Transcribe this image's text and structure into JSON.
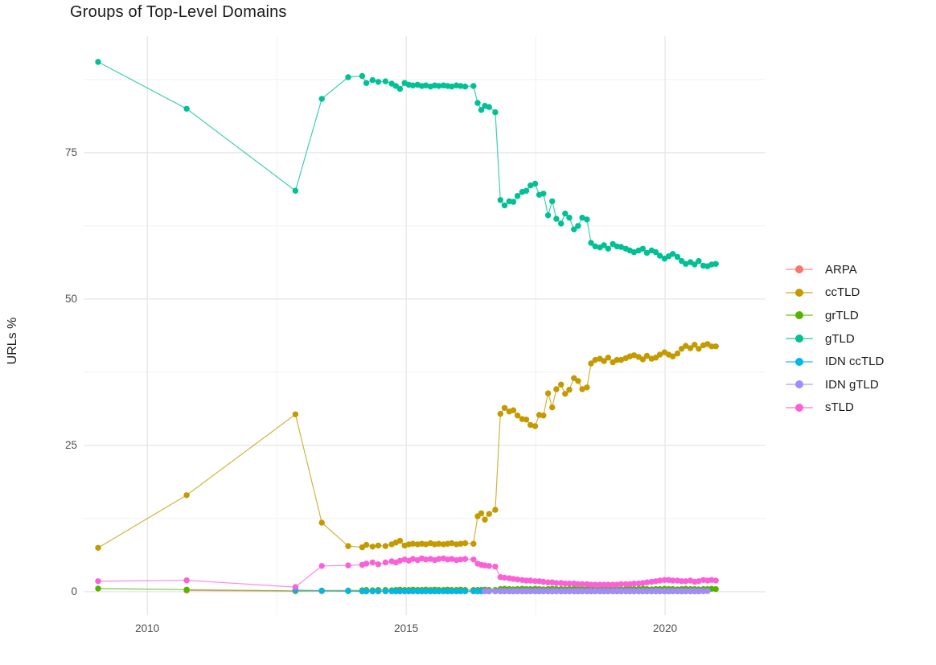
{
  "chart_data": {
    "type": "line",
    "title": "Groups of Top-Level Domains",
    "xlabel": "",
    "ylabel": "URLs %",
    "xlim": [
      2008.77,
      2021.94
    ],
    "ylim": [
      -4.0,
      94.9
    ],
    "xticks": [
      "2010",
      "2015",
      "2020"
    ],
    "yticks": [
      "0",
      "25",
      "50",
      "75"
    ],
    "x_minor": [
      2012.5,
      2017.5
    ],
    "y_minor": [
      12.5,
      37.5,
      62.5,
      87.5
    ],
    "grid": "major+minor on white, no axis lines",
    "legend_position": "right",
    "x": [
      2009.05,
      2010.76,
      2012.86,
      2013.37,
      2013.88,
      2014.15,
      2014.23,
      2014.35,
      2014.46,
      2014.6,
      2014.72,
      2014.8,
      2014.88,
      2014.97,
      2015.05,
      2015.13,
      2015.22,
      2015.3,
      2015.38,
      2015.47,
      2015.55,
      2015.63,
      2015.72,
      2015.8,
      2015.88,
      2015.97,
      2016.05,
      2016.14,
      2016.3,
      2016.38,
      2016.45,
      2016.52,
      2016.6,
      2016.72,
      2016.82,
      2016.9,
      2016.99,
      2017.07,
      2017.15,
      2017.24,
      2017.32,
      2017.4,
      2017.49,
      2017.57,
      2017.65,
      2017.74,
      2017.82,
      2017.9,
      2017.99,
      2018.07,
      2018.15,
      2018.24,
      2018.32,
      2018.4,
      2018.49,
      2018.57,
      2018.65,
      2018.74,
      2018.82,
      2018.9,
      2018.99,
      2019.07,
      2019.15,
      2019.24,
      2019.32,
      2019.4,
      2019.49,
      2019.57,
      2019.65,
      2019.74,
      2019.82,
      2019.9,
      2019.99,
      2020.07,
      2020.15,
      2020.24,
      2020.32,
      2020.4,
      2020.49,
      2020.57,
      2020.65,
      2020.74,
      2020.82,
      2020.9,
      2020.98
    ],
    "series": [
      {
        "name": "ARPA",
        "color": "#F8766D",
        "offset": 1,
        "y": [
          0.2,
          0.1,
          0.1,
          0.08,
          0.07,
          0.07,
          0.07,
          0.07,
          0.07,
          0.07,
          0.07,
          0.07,
          0.07,
          0.07,
          0.07,
          0.07,
          0.07,
          0.07,
          0.07,
          0.07,
          0.07,
          0.07,
          0.07,
          0.07,
          0.07,
          0.07,
          0.07,
          0.07,
          0.07,
          0.06,
          0.06,
          0.06,
          0.06,
          0.06,
          0.06,
          0.06,
          0.06,
          0.06,
          0.06,
          0.06,
          0.06,
          0.06,
          0.06,
          0.06,
          0.06,
          0.06,
          0.06,
          0.06,
          0.06,
          0.06,
          0.06,
          0.06,
          0.06,
          0.06,
          0.06,
          0.06,
          0.06,
          0.06,
          0.06,
          0.06,
          0.06,
          0.06,
          0.06,
          0.06,
          0.06,
          0.06,
          0.06,
          0.06,
          0.06,
          0.06,
          0.06,
          0.06,
          0.06,
          0.06,
          0.06,
          0.06,
          0.06,
          0.06,
          0.06,
          0.06
        ]
      },
      {
        "name": "ccTLD",
        "color": "#C49A00",
        "offset": 0,
        "y": [
          7.5,
          16.5,
          30.3,
          11.8,
          7.8,
          7.6,
          8.0,
          7.7,
          7.9,
          7.8,
          8.1,
          8.4,
          8.7,
          7.9,
          8.1,
          8.2,
          8.1,
          8.2,
          8.1,
          8.3,
          8.1,
          8.2,
          8.1,
          8.2,
          8.3,
          8.1,
          8.2,
          8.3,
          8.2,
          12.9,
          13.4,
          12.3,
          13.3,
          14.0,
          30.4,
          31.4,
          30.8,
          31.0,
          30.1,
          29.5,
          29.4,
          28.5,
          28.3,
          30.2,
          30.1,
          33.9,
          31.5,
          34.6,
          35.4,
          33.8,
          34.5,
          36.5,
          36.0,
          34.6,
          34.9,
          39.0,
          39.6,
          39.8,
          39.4,
          40.0,
          39.2,
          39.6,
          39.6,
          39.9,
          40.2,
          40.4,
          40.1,
          39.7,
          40.3,
          39.8,
          40.0,
          40.5,
          40.9,
          40.5,
          40.2,
          40.7,
          41.5,
          42.0,
          41.6,
          42.2,
          41.5,
          42.1,
          42.3,
          41.9,
          41.9
        ]
      },
      {
        "name": "grTLD",
        "color": "#53B400",
        "offset": 0,
        "y": [
          0.55,
          0.35,
          0.15,
          0.2,
          0.2,
          0.25,
          0.3,
          0.25,
          0.3,
          0.3,
          0.25,
          0.3,
          0.35,
          0.3,
          0.3,
          0.35,
          0.3,
          0.3,
          0.35,
          0.3,
          0.35,
          0.3,
          0.3,
          0.35,
          0.3,
          0.3,
          0.35,
          0.3,
          0.3,
          0.3,
          0.3,
          0.35,
          0.3,
          0.3,
          0.45,
          0.5,
          0.45,
          0.4,
          0.45,
          0.5,
          0.45,
          0.45,
          0.5,
          0.45,
          0.4,
          0.45,
          0.5,
          0.45,
          0.45,
          0.4,
          0.45,
          0.5,
          0.45,
          0.45,
          0.5,
          0.45,
          0.4,
          0.45,
          0.45,
          0.5,
          0.45,
          0.45,
          0.4,
          0.45,
          0.5,
          0.45,
          0.45,
          0.5,
          0.45,
          0.4,
          0.45,
          0.45,
          0.5,
          0.45,
          0.45,
          0.4,
          0.45,
          0.5,
          0.45,
          0.45,
          0.4,
          0.45,
          0.45,
          0.5,
          0.45
        ]
      },
      {
        "name": "gTLD",
        "color": "#00C094",
        "offset": 0,
        "y": [
          90.5,
          82.5,
          68.5,
          84.2,
          87.9,
          88.1,
          86.9,
          87.4,
          87.1,
          87.2,
          86.8,
          86.4,
          85.9,
          86.9,
          86.6,
          86.5,
          86.6,
          86.4,
          86.5,
          86.3,
          86.5,
          86.4,
          86.5,
          86.4,
          86.3,
          86.5,
          86.4,
          86.3,
          86.4,
          83.5,
          82.3,
          83.0,
          82.8,
          81.9,
          66.9,
          66.0,
          66.7,
          66.6,
          67.6,
          68.3,
          68.5,
          69.4,
          69.7,
          67.8,
          68.0,
          64.3,
          66.7,
          63.7,
          62.9,
          64.6,
          63.9,
          61.9,
          62.5,
          63.9,
          63.6,
          59.6,
          59.0,
          58.8,
          59.2,
          58.6,
          59.4,
          59.0,
          58.9,
          58.6,
          58.3,
          58.0,
          58.3,
          58.6,
          57.9,
          58.3,
          58.0,
          57.4,
          56.9,
          57.3,
          57.7,
          57.2,
          56.5,
          56.0,
          56.3,
          55.9,
          56.5,
          55.7,
          55.6,
          55.9,
          56.0
        ]
      },
      {
        "name": "IDN ccTLD",
        "color": "#00B6EB",
        "offset": 2,
        "y": [
          0.3,
          0.15,
          0.12,
          0.1,
          0.1,
          0.1,
          0.1,
          0.1,
          0.1,
          0.1,
          0.1,
          0.1,
          0.1,
          0.1,
          0.1,
          0.1,
          0.1,
          0.1,
          0.1,
          0.1,
          0.1,
          0.1,
          0.1,
          0.1,
          0.1,
          0.1,
          0.1,
          0.1,
          0.1,
          0.1,
          0.1,
          0.1,
          0.1,
          0.1,
          0.1,
          0.1,
          0.1,
          0.1,
          0.1,
          0.1,
          0.1,
          0.1,
          0.1,
          0.1,
          0.1,
          0.1,
          0.1,
          0.1,
          0.1,
          0.1,
          0.1,
          0.1,
          0.1,
          0.1,
          0.1,
          0.1,
          0.1,
          0.1,
          0.1,
          0.1,
          0.1,
          0.1,
          0.1,
          0.1,
          0.1,
          0.1,
          0.1,
          0.1,
          0.1,
          0.1,
          0.1,
          0.1,
          0.1,
          0.1,
          0.1,
          0.1,
          0.1,
          0.1,
          0.1,
          0.1
        ]
      },
      {
        "name": "IDN gTLD",
        "color": "#A58AFF",
        "offset": 31,
        "y": [
          0.1,
          0.1,
          0.1,
          0.12,
          0.12,
          0.12,
          0.12,
          0.12,
          0.12,
          0.12,
          0.12,
          0.12,
          0.12,
          0.12,
          0.12,
          0.12,
          0.12,
          0.12,
          0.12,
          0.12,
          0.12,
          0.12,
          0.12,
          0.12,
          0.12,
          0.12,
          0.12,
          0.12,
          0.12,
          0.12,
          0.12,
          0.12,
          0.12,
          0.12,
          0.12,
          0.12,
          0.12,
          0.12,
          0.12,
          0.12,
          0.12,
          0.12,
          0.12,
          0.12,
          0.12,
          0.12,
          0.12,
          0.12,
          0.12,
          0.12,
          0.12,
          0.12
        ]
      },
      {
        "name": "sTLD",
        "color": "#FB61D7",
        "offset": 0,
        "y": [
          1.8,
          1.95,
          0.8,
          4.4,
          4.5,
          4.6,
          4.8,
          5.0,
          4.7,
          5.0,
          5.2,
          5.0,
          5.3,
          5.5,
          5.3,
          5.6,
          5.4,
          5.7,
          5.5,
          5.6,
          5.4,
          5.6,
          5.7,
          5.5,
          5.6,
          5.4,
          5.5,
          5.6,
          5.5,
          4.8,
          4.6,
          4.5,
          4.4,
          4.3,
          2.5,
          2.4,
          2.3,
          2.2,
          2.1,
          2.0,
          1.9,
          1.9,
          1.8,
          1.8,
          1.7,
          1.6,
          1.6,
          1.5,
          1.5,
          1.4,
          1.4,
          1.4,
          1.3,
          1.3,
          1.3,
          1.2,
          1.2,
          1.2,
          1.2,
          1.2,
          1.2,
          1.2,
          1.3,
          1.3,
          1.3,
          1.4,
          1.4,
          1.5,
          1.6,
          1.7,
          1.8,
          1.9,
          2.0,
          2.0,
          1.9,
          1.9,
          1.8,
          1.8,
          1.9,
          1.7,
          1.8,
          2.0,
          1.9,
          2.0,
          1.9
        ]
      }
    ],
    "style": {
      "grid_major_color": "#E6E6E6",
      "grid_minor_color": "#F1F1F1",
      "point_radius": 3.7,
      "line_width": 1.2
    }
  }
}
